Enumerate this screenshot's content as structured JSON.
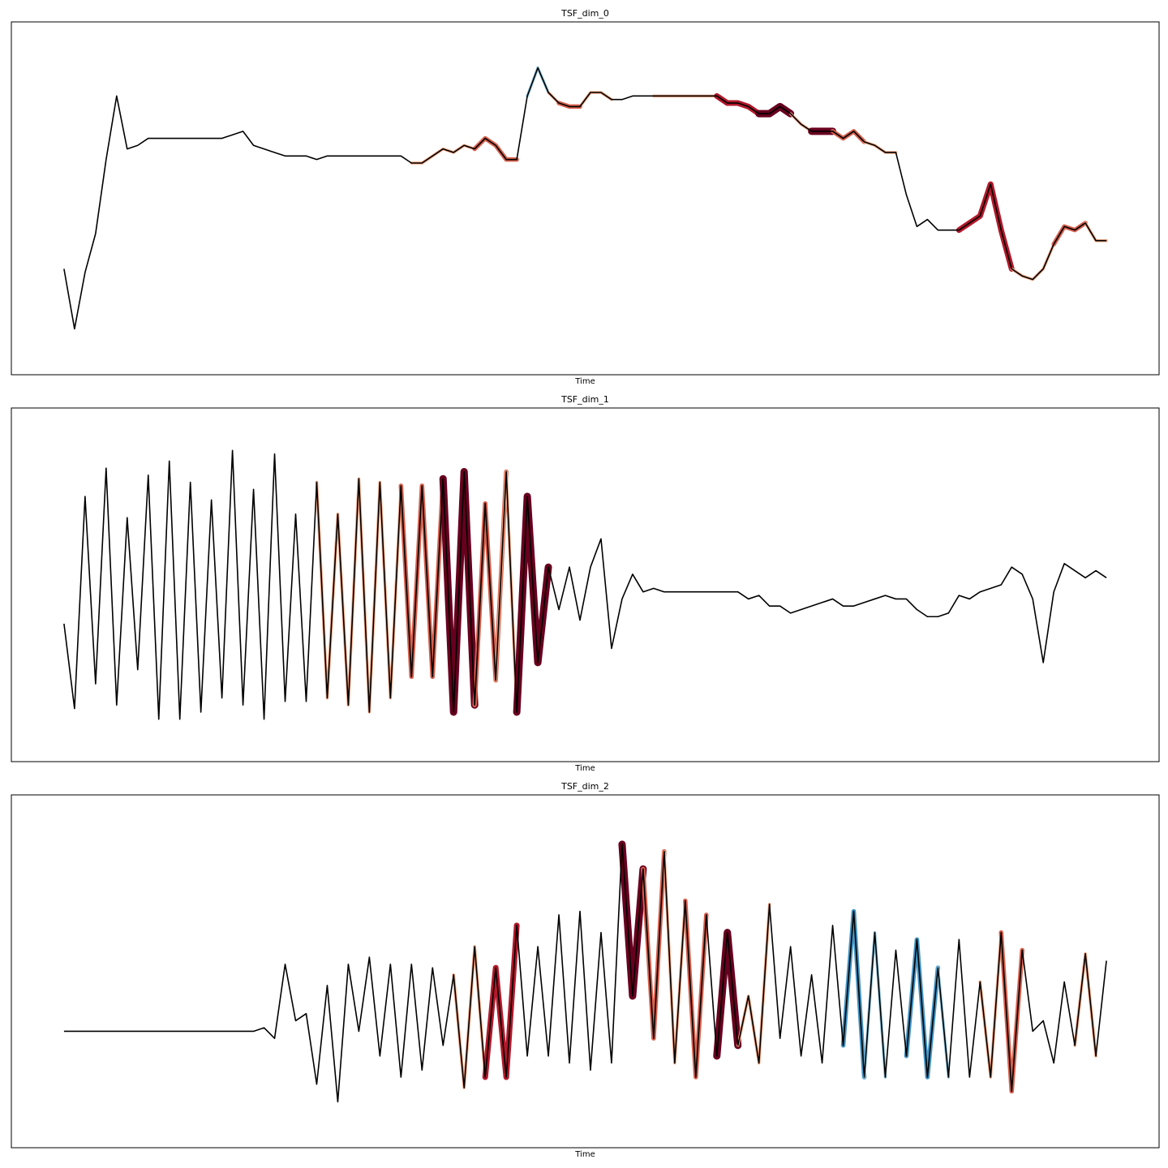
{
  "chart_data": [
    {
      "type": "line",
      "title": "TSF_dim_0",
      "xlabel": "Time",
      "color": "#000000",
      "xlim": [
        -5,
        104
      ],
      "ylim": [
        0,
        100
      ],
      "values": [
        30,
        13,
        29,
        40,
        61,
        79,
        64,
        65,
        67,
        67,
        67,
        67,
        67,
        67,
        67,
        67,
        68,
        69,
        65,
        64,
        63,
        62,
        62,
        62,
        61,
        62,
        62,
        62,
        62,
        62,
        62,
        62,
        62,
        60,
        60,
        62,
        64,
        63,
        65,
        64,
        67,
        65,
        61,
        61,
        79,
        87,
        80,
        77,
        76,
        76,
        80,
        80,
        78,
        78,
        79,
        79,
        79,
        79,
        79,
        79,
        79,
        79,
        79,
        77,
        77,
        76,
        74,
        74,
        76,
        74,
        71,
        69,
        69,
        69,
        67,
        69,
        66,
        65,
        63,
        63,
        51,
        42,
        44,
        41,
        41,
        41,
        43,
        45,
        54,
        41,
        30,
        28,
        27,
        30,
        37,
        42,
        41,
        43,
        38,
        38
      ],
      "highlights": [
        {
          "start": 33,
          "end": 43,
          "color": "#f4a582"
        },
        {
          "start": 39,
          "end": 43,
          "color": "#d6604d"
        },
        {
          "start": 44,
          "end": 46,
          "color": "#92c5de"
        },
        {
          "start": 46,
          "end": 52,
          "color": "#f4a582"
        },
        {
          "start": 47,
          "end": 49,
          "color": "#d6604d"
        },
        {
          "start": 56,
          "end": 63,
          "color": "#f4a582"
        },
        {
          "start": 62,
          "end": 66,
          "color": "#b2182b"
        },
        {
          "start": 66,
          "end": 69,
          "color": "#67001f"
        },
        {
          "start": 69,
          "end": 71,
          "color": "#f4a582"
        },
        {
          "start": 71,
          "end": 73,
          "color": "#67001f"
        },
        {
          "start": 73,
          "end": 76,
          "color": "#d6604d"
        },
        {
          "start": 76,
          "end": 79,
          "color": "#f4a582"
        },
        {
          "start": 85,
          "end": 90,
          "color": "#b2182b"
        },
        {
          "start": 90,
          "end": 94,
          "color": "#f4a582"
        },
        {
          "start": 94,
          "end": 97,
          "color": "#d6604d"
        },
        {
          "start": 97,
          "end": 99,
          "color": "#f4a582"
        }
      ]
    },
    {
      "type": "line",
      "title": "TSF_dim_1",
      "xlabel": "Time",
      "color": "#000000",
      "xlim": [
        -5,
        104
      ],
      "ylim": [
        0,
        100
      ],
      "values": [
        39,
        15,
        75,
        22,
        83,
        16,
        69,
        26,
        81,
        12,
        85,
        12,
        79,
        14,
        74,
        18,
        88,
        16,
        77,
        12,
        87,
        17,
        70,
        17,
        79,
        18,
        70,
        16,
        80,
        14,
        79,
        18,
        78,
        24,
        78,
        24,
        80,
        14,
        82,
        16,
        73,
        23,
        82,
        14,
        75,
        28,
        55,
        43,
        55,
        40,
        55,
        63,
        32,
        46,
        53,
        48,
        49,
        48,
        48,
        48,
        48,
        48,
        48,
        48,
        48,
        46,
        47,
        44,
        44,
        42,
        43,
        44,
        45,
        46,
        44,
        44,
        45,
        46,
        47,
        46,
        46,
        43,
        41,
        41,
        42,
        47,
        46,
        48,
        49,
        50,
        55,
        53,
        46,
        28,
        48,
        56,
        54,
        52,
        54,
        52
      ],
      "highlights": [
        {
          "start": 24,
          "end": 33,
          "color": "#f4a582"
        },
        {
          "start": 32,
          "end": 36,
          "color": "#d6604d"
        },
        {
          "start": 36,
          "end": 39,
          "color": "#67001f"
        },
        {
          "start": 39,
          "end": 42,
          "color": "#d6604d"
        },
        {
          "start": 41,
          "end": 43,
          "color": "#f4a582"
        },
        {
          "start": 43,
          "end": 46,
          "color": "#67001f"
        }
      ]
    },
    {
      "type": "line",
      "title": "TSF_dim_2",
      "xlabel": "Time",
      "color": "#000000",
      "xlim": [
        -5,
        104
      ],
      "ylim": [
        0,
        100
      ],
      "values": [
        33,
        33,
        33,
        33,
        33,
        33,
        33,
        33,
        33,
        33,
        33,
        33,
        33,
        33,
        33,
        33,
        33,
        33,
        33,
        34,
        31,
        52,
        36,
        38,
        18,
        46,
        13,
        52,
        33,
        54,
        26,
        52,
        20,
        52,
        22,
        51,
        29,
        49,
        17,
        57,
        20,
        51,
        20,
        63,
        26,
        57,
        26,
        66,
        24,
        67,
        22,
        61,
        24,
        86,
        43,
        79,
        31,
        84,
        24,
        70,
        20,
        66,
        26,
        61,
        29,
        43,
        24,
        69,
        31,
        57,
        26,
        49,
        24,
        63,
        29,
        67,
        20,
        61,
        20,
        56,
        26,
        59,
        20,
        51,
        20,
        59,
        20,
        47,
        20,
        61,
        16,
        56,
        33,
        36,
        24,
        47,
        29,
        55,
        26,
        53
      ],
      "highlights": [
        {
          "start": 37,
          "end": 40,
          "color": "#f4a582"
        },
        {
          "start": 40,
          "end": 43,
          "color": "#b2182b"
        },
        {
          "start": 53,
          "end": 55,
          "color": "#67001f"
        },
        {
          "start": 55,
          "end": 57,
          "color": "#d6604d"
        },
        {
          "start": 57,
          "end": 59,
          "color": "#f4a582"
        },
        {
          "start": 59,
          "end": 61,
          "color": "#d6604d"
        },
        {
          "start": 62,
          "end": 64,
          "color": "#67001f"
        },
        {
          "start": 64,
          "end": 67,
          "color": "#f4a582"
        },
        {
          "start": 74,
          "end": 76,
          "color": "#4393c3"
        },
        {
          "start": 76,
          "end": 78,
          "color": "#92c5de"
        },
        {
          "start": 80,
          "end": 83,
          "color": "#4393c3"
        },
        {
          "start": 83,
          "end": 84,
          "color": "#92c5de"
        },
        {
          "start": 87,
          "end": 89,
          "color": "#f4a582"
        },
        {
          "start": 89,
          "end": 91,
          "color": "#d6604d"
        },
        {
          "start": 96,
          "end": 98,
          "color": "#f4a582"
        }
      ]
    }
  ]
}
